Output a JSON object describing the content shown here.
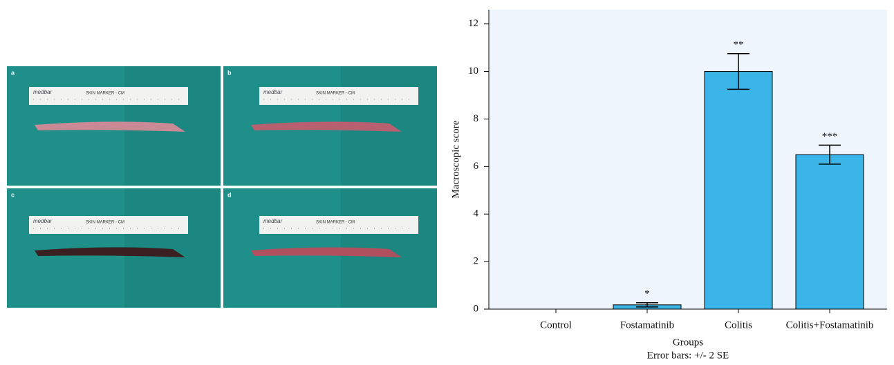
{
  "panels": [
    {
      "label": "a",
      "brand": "medbar",
      "ruler": "SKIN MARKER - CM"
    },
    {
      "label": "b",
      "brand": "medbar",
      "ruler": "SKIN MARKER - CM"
    },
    {
      "label": "c",
      "brand": "medbar",
      "ruler": "SKIN MARKER - CM"
    },
    {
      "label": "d",
      "brand": "medbar",
      "ruler": "SKIN MARKER - CM"
    }
  ],
  "chart_data": {
    "type": "bar",
    "categories": [
      "Control",
      "Fostamatinib",
      "Colitis",
      "Colitis+Fostamatinib"
    ],
    "values": [
      0,
      0.18,
      10,
      6.5
    ],
    "errors": [
      0,
      0.09,
      0.75,
      0.4
    ],
    "annotations": [
      null,
      "*",
      "**",
      "***"
    ],
    "color": "#3bb5e8",
    "background": "#eef5fd",
    "ylim": [
      0,
      12.6
    ],
    "yticks": [
      0,
      2,
      4,
      6,
      8,
      10,
      12
    ],
    "x_label": "Groups",
    "y_label": "Macroscopic score",
    "note": "Error bars: +/- 2 SE"
  }
}
